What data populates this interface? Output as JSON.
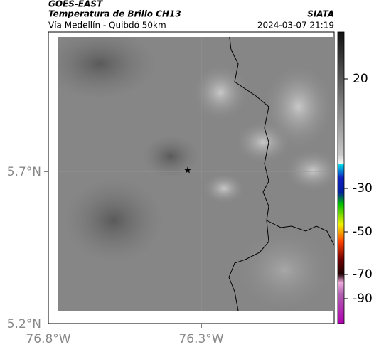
{
  "header": {
    "satellite": "GOES-EAST",
    "product": "Temperatura de Brillo CH13",
    "source": "SIATA",
    "location": "Vía Medellín - Quibdó 50km",
    "datetime": "2024-03-07 21:19"
  },
  "map": {
    "lat_labels": [
      "5.7°N",
      "5.2°N"
    ],
    "lon_labels": [
      "76.8°W",
      "76.3°W"
    ]
  },
  "colorbar": {
    "labels": [
      "20",
      "-30",
      "-50",
      "-70",
      "-90"
    ]
  }
}
